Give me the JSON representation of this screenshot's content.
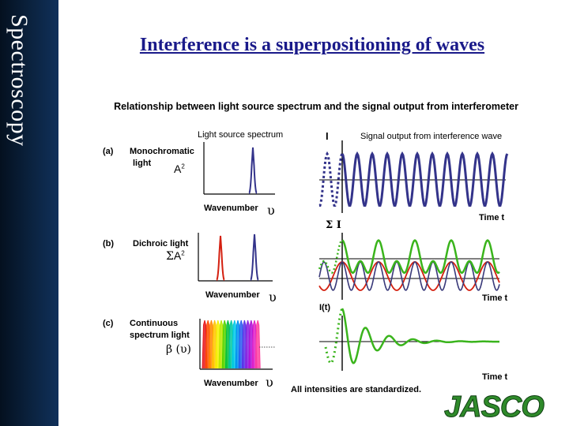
{
  "sidebar": {
    "label": "Spectroscopy"
  },
  "title": "Interference is a superpositioning of waves",
  "subtitle": "Relationship between light source spectrum and the signal output from interferometer",
  "headers": {
    "left": "Light source spectrum",
    "right_symbol": "I",
    "right": "Signal output from interference wave"
  },
  "rows": {
    "a": {
      "tag": "(a)",
      "label_line1": "Monochromatic",
      "label_line2": "light",
      "amp": "A",
      "amp_sup": "2",
      "x_label": "Wavenumber",
      "x_symbol": "υ",
      "signal_symbol": "Σ I",
      "time_label": "Time t"
    },
    "b": {
      "tag": "(b)",
      "label": "Dichroic light",
      "amp_prefix": "Σ",
      "amp": "A",
      "amp_sup": "2",
      "x_label": "Wavenumber",
      "x_symbol": "υ",
      "signal_symbol": "I(t)",
      "time_label": "Time t"
    },
    "c": {
      "tag": "(c)",
      "label_line1": "Continuous",
      "label_line2": "spectrum light",
      "amp": "β (υ)",
      "x_label": "Wavenumber",
      "x_symbol": "υ",
      "time_label": "Time t"
    }
  },
  "footnote": "All intensities are standardized.",
  "logo": "JASCO",
  "colors": {
    "blue": "#33338a",
    "red": "#d42010",
    "green": "#3ab41c",
    "navy_sidebar": "#0b2340",
    "logo_green": "#2f8a2a"
  }
}
